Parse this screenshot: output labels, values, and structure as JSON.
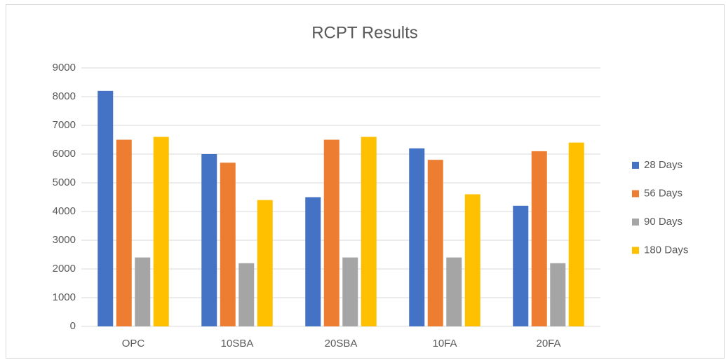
{
  "chart_data": {
    "type": "bar",
    "title": "RCPT Results",
    "categories": [
      "OPC",
      "10SBA",
      "20SBA",
      "10FA",
      "20FA"
    ],
    "series": [
      {
        "name": "28 Days",
        "color": "#4472c4",
        "values": [
          8200,
          6000,
          4500,
          6200,
          4200
        ]
      },
      {
        "name": "56 Days",
        "color": "#ed7d31",
        "values": [
          6500,
          5700,
          6500,
          5800,
          6100
        ]
      },
      {
        "name": "90 Days",
        "color": "#a5a5a5",
        "values": [
          2400,
          2200,
          2400,
          2400,
          2200
        ]
      },
      {
        "name": "180 Days",
        "color": "#ffc000",
        "values": [
          6600,
          4400,
          6600,
          4600,
          6400
        ]
      }
    ],
    "ylim": [
      0,
      9000
    ],
    "yticks": [
      0,
      1000,
      2000,
      3000,
      4000,
      5000,
      6000,
      7000,
      8000,
      9000
    ],
    "grid": true,
    "legend": "right"
  }
}
